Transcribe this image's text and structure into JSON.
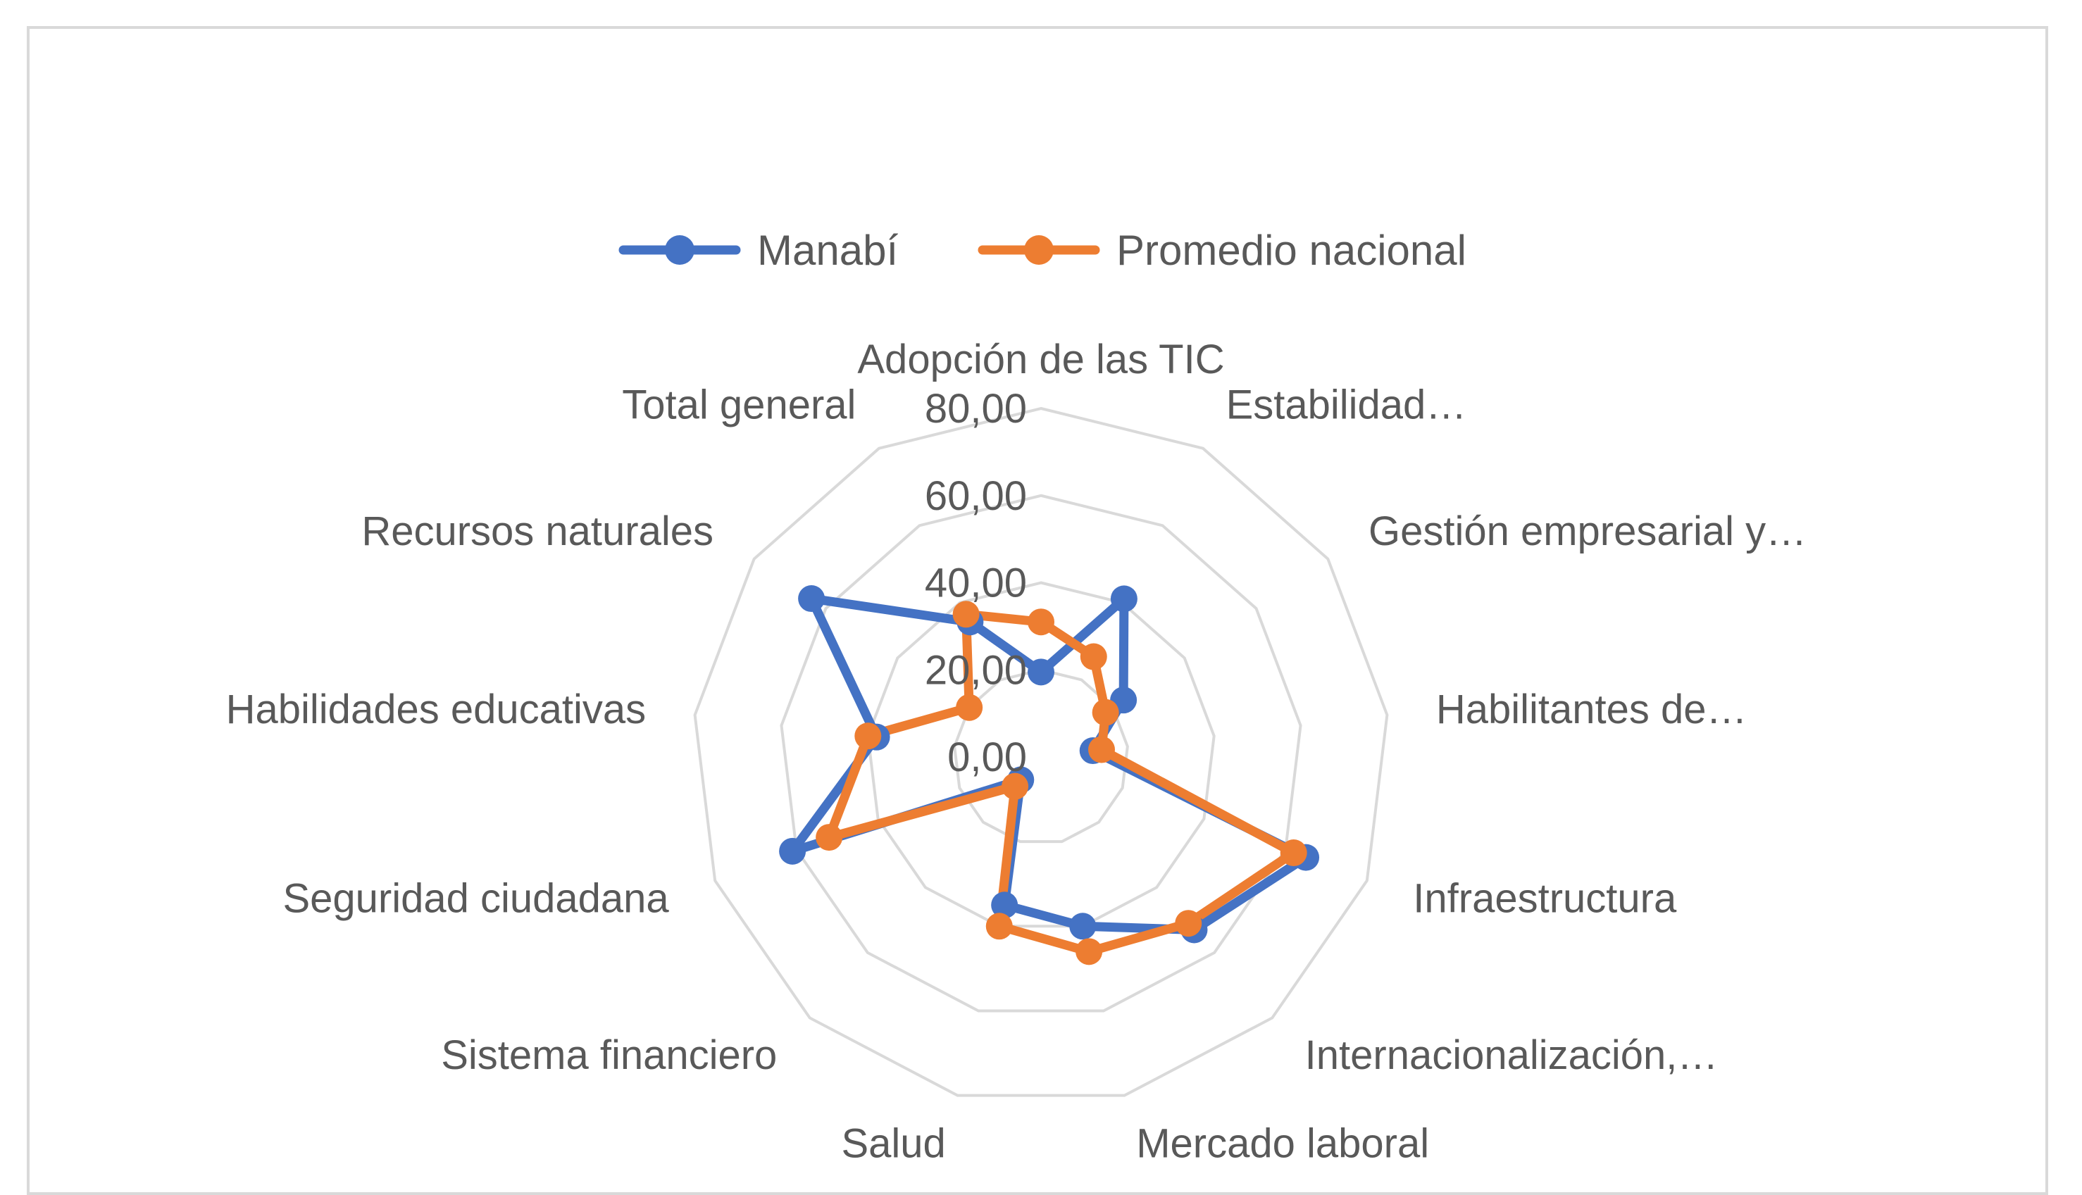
{
  "chart_data": {
    "type": "radar",
    "title": "",
    "categories": [
      "Adopción de las TIC",
      "Estabilidad…",
      "Gestión empresarial y…",
      "Habilitantes de…",
      "Infraestructura",
      "Internacionalización,…",
      "Mercado laboral",
      "Salud",
      "Sistema financiero",
      "Seguridad ciudadana",
      "Habilidades educativas",
      "Recursos naturales",
      "Total general"
    ],
    "series": [
      {
        "name": "Manabí",
        "color": "#4472c4",
        "values": [
          19.5,
          41.0,
          23.0,
          12.0,
          65.0,
          53.0,
          40.0,
          35.0,
          7.0,
          61.0,
          38.0,
          64.0,
          35.0
        ]
      },
      {
        "name": "Promedio nacional",
        "color": "#ed7d31",
        "values": [
          31.0,
          26.0,
          18.0,
          14.0,
          62.0,
          51.0,
          46.0,
          40.0,
          9.0,
          52.0,
          40.0,
          20.0,
          37.0
        ]
      }
    ],
    "r_ticks": [
      "0,00",
      "20,00",
      "40,00",
      "60,00",
      "80,00"
    ],
    "r_range": [
      0,
      80
    ],
    "legend_position": "top",
    "gridlines": true
  }
}
